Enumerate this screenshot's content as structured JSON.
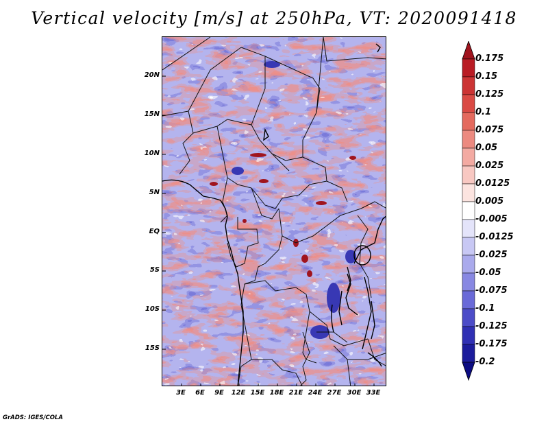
{
  "figure": {
    "title": "Vertical velocity [m/s] at 250hPa, VT: 2020091418",
    "credit": "GrADS: IGES/COLA",
    "variable": "vertical velocity",
    "units": "m/s",
    "level": "250hPa",
    "valid_time": "2020091418"
  },
  "map": {
    "lat_labels": [
      "20N",
      "15N",
      "10N",
      "5N",
      "EQ",
      "5S",
      "10S",
      "15S"
    ],
    "lat_values": [
      20,
      15,
      10,
      5,
      0,
      -5,
      -10,
      -15
    ],
    "lon_labels": [
      "3E",
      "6E",
      "9E",
      "12E",
      "15E",
      "18E",
      "21E",
      "24E",
      "27E",
      "30E",
      "33E"
    ],
    "lon_values": [
      3,
      6,
      9,
      12,
      15,
      18,
      21,
      24,
      27,
      30,
      33
    ],
    "lon_range": [
      0.5,
      35.5
    ],
    "lat_range": [
      -20,
      24.5
    ]
  },
  "colorbar": {
    "labels": [
      "0.175",
      "0.15",
      "0.125",
      "0.1",
      "0.075",
      "0.05",
      "0.025",
      "0.0125",
      "0.005",
      "-0.005",
      "-0.0125",
      "-0.025",
      "-0.05",
      "-0.075",
      "-0.1",
      "-0.125",
      "-0.175",
      "-0.2"
    ],
    "colors": [
      "#a0141e",
      "#b91c24",
      "#cc3434",
      "#da4a44",
      "#e46a5e",
      "#ec8a80",
      "#f3aaa2",
      "#f8c8c2",
      "#fce4e0",
      "#ffffff",
      "#e4e4fa",
      "#c8c8f4",
      "#aaaaec",
      "#8888e2",
      "#6a6ad8",
      "#4c4cc8",
      "#3030b4",
      "#1c1c9c",
      "#0c0c82"
    ],
    "max_arrow_color": "#a0141e",
    "min_arrow_color": "#0c0c82"
  }
}
